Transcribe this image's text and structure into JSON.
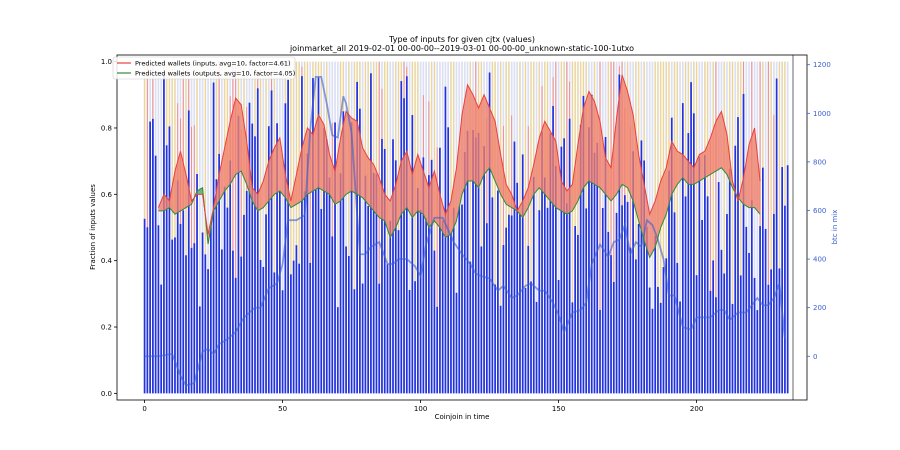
{
  "chart_data": {
    "type": "line",
    "title": "Type of inputs for given cjtx (values)",
    "subtitle": "joinmarket_all 2019-02-01 00-00-00--2019-03-01 00-00-00_unknown-static-100-1utxo",
    "xlabel": "Coinjoin in time",
    "ylabel": "Fraction of inputs values",
    "ylabel_right": "btc in mix",
    "xlim": [
      -10,
      240
    ],
    "ylim": [
      -0.02,
      1.02
    ],
    "ylim_right": [
      -180,
      1240
    ],
    "x_ticks": [
      0,
      50,
      100,
      150,
      200
    ],
    "y_ticks": [
      0.0,
      0.2,
      0.4,
      0.6,
      0.8,
      1.0
    ],
    "y_ticks_right": [
      0,
      200,
      400,
      600,
      800,
      1000,
      1200
    ],
    "legend_placement": "top-left",
    "colors": {
      "inputs_line": "#e8413a",
      "inputs_fill": "#f0806a",
      "outputs_line": "#2e8b3a",
      "outputs_fill": "#5aa36a",
      "bars_blue": "#2233dd",
      "bars_yellow": "#ffd24a",
      "bars_red": "#ff6a5a",
      "bars_bg": "#dde0f3",
      "btc_line": "#3a5fd0"
    },
    "series": [
      {
        "name": "Predicted wallets (inputs, avg=10, factor=4.61)",
        "axis": "left",
        "x": [
          5,
          7,
          9,
          11,
          13,
          15,
          17,
          19,
          21,
          23,
          25,
          27,
          29,
          31,
          33,
          35,
          37,
          39,
          41,
          43,
          45,
          47,
          49,
          51,
          53,
          55,
          57,
          59,
          61,
          63,
          65,
          67,
          69,
          71,
          73,
          75,
          77,
          79,
          81,
          83,
          85,
          87,
          89,
          91,
          93,
          95,
          97,
          99,
          101,
          103,
          105,
          107,
          109,
          111,
          113,
          115,
          117,
          119,
          121,
          123,
          125,
          127,
          129,
          131,
          133,
          135,
          137,
          139,
          141,
          143,
          145,
          147,
          149,
          151,
          153,
          155,
          157,
          159,
          161,
          163,
          165,
          167,
          169,
          171,
          173,
          175,
          177,
          179,
          181,
          183,
          185,
          187,
          189,
          191,
          193,
          195,
          197,
          199,
          201,
          203,
          205,
          207,
          209,
          211,
          213,
          215,
          217,
          219,
          221,
          223
        ],
        "values": [
          0.56,
          0.6,
          0.58,
          0.67,
          0.73,
          0.66,
          0.58,
          0.6,
          0.6,
          0.48,
          0.56,
          0.66,
          0.74,
          0.82,
          0.89,
          0.87,
          0.76,
          0.62,
          0.6,
          0.64,
          0.7,
          0.74,
          0.77,
          0.66,
          0.58,
          0.66,
          0.74,
          0.8,
          0.78,
          0.84,
          0.81,
          0.72,
          0.67,
          0.77,
          0.85,
          0.83,
          0.82,
          0.74,
          0.71,
          0.69,
          0.65,
          0.6,
          0.58,
          0.63,
          0.7,
          0.73,
          0.66,
          0.72,
          0.67,
          0.62,
          0.67,
          0.6,
          0.54,
          0.58,
          0.68,
          0.84,
          0.93,
          0.9,
          0.86,
          0.9,
          0.86,
          0.82,
          0.72,
          0.63,
          0.6,
          0.55,
          0.58,
          0.62,
          0.69,
          0.77,
          0.82,
          0.79,
          0.76,
          0.64,
          0.61,
          0.63,
          0.75,
          0.86,
          0.91,
          0.88,
          0.82,
          0.71,
          0.68,
          0.83,
          0.96,
          0.91,
          0.84,
          0.72,
          0.63,
          0.54,
          0.58,
          0.64,
          0.68,
          0.76,
          0.73,
          0.72,
          0.7,
          0.68,
          0.72,
          0.73,
          0.77,
          0.82,
          0.85,
          0.78,
          0.64,
          0.58,
          0.65,
          0.75,
          0.8,
          0.64
        ]
      },
      {
        "name": "Predicted wallets (outputs, avg=10, factor=4.05)",
        "axis": "left",
        "x": [
          5,
          7,
          9,
          11,
          13,
          15,
          17,
          19,
          21,
          23,
          25,
          27,
          29,
          31,
          33,
          35,
          37,
          39,
          41,
          43,
          45,
          47,
          49,
          51,
          53,
          55,
          57,
          59,
          61,
          63,
          65,
          67,
          69,
          71,
          73,
          75,
          77,
          79,
          81,
          83,
          85,
          87,
          89,
          91,
          93,
          95,
          97,
          99,
          101,
          103,
          105,
          107,
          109,
          111,
          113,
          115,
          117,
          119,
          121,
          123,
          125,
          127,
          129,
          131,
          133,
          135,
          137,
          139,
          141,
          143,
          145,
          147,
          149,
          151,
          153,
          155,
          157,
          159,
          161,
          163,
          165,
          167,
          169,
          171,
          173,
          175,
          177,
          179,
          181,
          183,
          185,
          187,
          189,
          191,
          193,
          195,
          197,
          199,
          201,
          203,
          205,
          207,
          209,
          211,
          213,
          215,
          217,
          219,
          221,
          223
        ],
        "values": [
          0.55,
          0.55,
          0.56,
          0.54,
          0.55,
          0.56,
          0.57,
          0.61,
          0.62,
          0.45,
          0.55,
          0.58,
          0.61,
          0.63,
          0.66,
          0.67,
          0.63,
          0.58,
          0.55,
          0.56,
          0.58,
          0.6,
          0.61,
          0.59,
          0.56,
          0.57,
          0.58,
          0.6,
          0.61,
          0.62,
          0.61,
          0.6,
          0.57,
          0.58,
          0.6,
          0.61,
          0.6,
          0.59,
          0.57,
          0.55,
          0.53,
          0.52,
          0.47,
          0.5,
          0.54,
          0.56,
          0.53,
          0.55,
          0.54,
          0.5,
          0.52,
          0.5,
          0.47,
          0.48,
          0.52,
          0.6,
          0.64,
          0.64,
          0.62,
          0.66,
          0.68,
          0.64,
          0.6,
          0.57,
          0.56,
          0.55,
          0.53,
          0.56,
          0.6,
          0.62,
          0.6,
          0.58,
          0.56,
          0.55,
          0.54,
          0.55,
          0.58,
          0.62,
          0.64,
          0.63,
          0.62,
          0.6,
          0.58,
          0.6,
          0.63,
          0.62,
          0.58,
          0.52,
          0.46,
          0.41,
          0.44,
          0.5,
          0.54,
          0.6,
          0.63,
          0.65,
          0.63,
          0.63,
          0.64,
          0.65,
          0.66,
          0.67,
          0.68,
          0.66,
          0.62,
          0.59,
          0.57,
          0.56,
          0.56,
          0.54
        ]
      },
      {
        "name": "btc in mix",
        "axis": "right",
        "x": [
          0,
          5,
          10,
          13,
          15,
          18,
          21,
          23,
          25,
          27,
          30,
          33,
          36,
          40,
          42,
          45,
          48,
          50,
          52,
          55,
          58,
          60,
          62,
          64,
          66,
          68,
          70,
          72,
          73,
          75,
          78,
          80,
          82,
          85,
          88,
          90,
          92,
          95,
          98,
          100,
          102,
          105,
          108,
          110,
          112,
          115,
          118,
          120,
          122,
          125,
          128,
          130,
          133,
          135,
          138,
          140,
          143,
          145,
          148,
          150,
          152,
          155,
          158,
          160,
          162,
          165,
          168,
          170,
          172,
          174,
          176,
          178,
          180,
          182,
          184,
          186,
          188,
          190,
          192,
          195,
          198,
          200,
          202,
          205,
          208,
          210,
          212,
          215,
          218,
          220,
          222,
          224,
          226,
          228,
          230,
          232
        ],
        "values": [
          0,
          0,
          10,
          -80,
          -120,
          -110,
          20,
          30,
          10,
          50,
          70,
          100,
          160,
          200,
          200,
          280,
          300,
          380,
          560,
          560,
          580,
          930,
          1150,
          1150,
          1040,
          910,
          900,
          1070,
          1040,
          920,
          420,
          420,
          450,
          470,
          380,
          380,
          400,
          400,
          370,
          330,
          460,
          570,
          570,
          520,
          470,
          420,
          380,
          340,
          330,
          320,
          270,
          290,
          240,
          250,
          290,
          300,
          270,
          270,
          220,
          170,
          100,
          180,
          190,
          220,
          380,
          460,
          410,
          470,
          480,
          540,
          420,
          470,
          450,
          560,
          540,
          480,
          400,
          250,
          250,
          120,
          110,
          160,
          160,
          160,
          190,
          190,
          150,
          180,
          180,
          210,
          240,
          210,
          210,
          240,
          300,
          70
        ]
      }
    ]
  }
}
